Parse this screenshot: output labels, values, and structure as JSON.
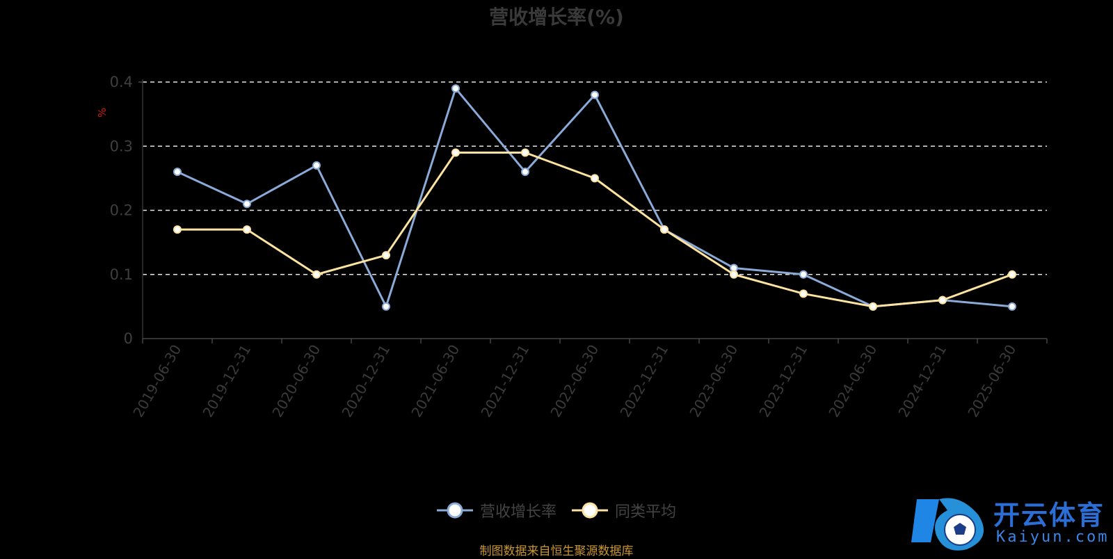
{
  "chart_data": {
    "type": "line",
    "title": "营收增长率(%)",
    "ylabel": "%",
    "xlabel": "",
    "ylim": [
      0,
      0.4
    ],
    "yticks": [
      "0",
      "0.1",
      "0.2",
      "0.3",
      "0.4"
    ],
    "grid": true,
    "legend_position": "bottom",
    "categories": [
      "2019-06-30",
      "2019-12-31",
      "2020-06-30",
      "2020-12-31",
      "2021-06-30",
      "2021-12-31",
      "2022-06-30",
      "2022-12-31",
      "2023-06-30",
      "2023-12-31",
      "2024-06-30",
      "2024-12-31",
      "2025-06-30"
    ],
    "series": [
      {
        "name": "营收增长率",
        "color": "#8aaad8",
        "values": [
          0.26,
          0.21,
          0.27,
          0.05,
          0.39,
          0.26,
          0.38,
          0.17,
          0.11,
          0.1,
          0.05,
          0.06,
          0.05
        ]
      },
      {
        "name": "同类平均",
        "color": "#fde3a1",
        "values": [
          0.17,
          0.17,
          0.1,
          0.13,
          0.29,
          0.29,
          0.25,
          0.17,
          0.1,
          0.07,
          0.05,
          0.06,
          0.1
        ]
      }
    ],
    "source_note": "制图数据来自恒生聚源数据库"
  },
  "watermark": {
    "brand": "开云体育",
    "domain": "Kaiyun.com"
  }
}
